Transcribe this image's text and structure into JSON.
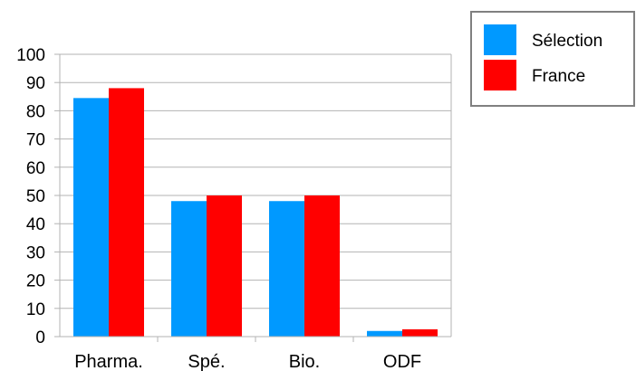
{
  "chart_data": {
    "type": "bar",
    "categories": [
      "Pharma.",
      "Spé.",
      "Bio.",
      "ODF"
    ],
    "series": [
      {
        "name": "Sélection",
        "values": [
          84.5,
          48,
          48,
          2
        ],
        "color": "#0099ff"
      },
      {
        "name": "France",
        "values": [
          88,
          50,
          50,
          2.6
        ],
        "color": "#ff0000"
      }
    ],
    "ylim": [
      0,
      100
    ],
    "yticks": [
      0,
      10,
      20,
      30,
      40,
      50,
      60,
      70,
      80,
      90,
      100
    ],
    "grid": true,
    "legend": "top-right",
    "title": "",
    "xlabel": "",
    "ylabel": ""
  }
}
